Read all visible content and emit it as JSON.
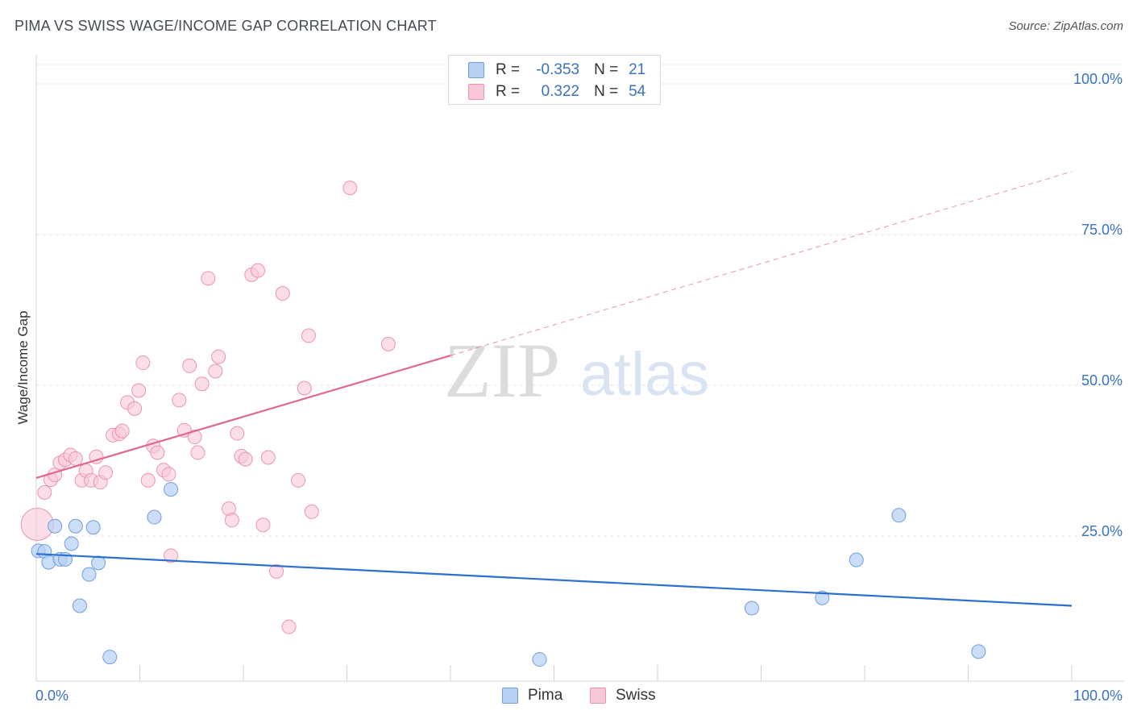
{
  "header": {
    "title": "PIMA VS SWISS WAGE/INCOME GAP CORRELATION CHART",
    "source": "Source: ZipAtlas.com"
  },
  "legend": {
    "rows": [
      {
        "r_label": "R =",
        "r_value": "-0.353",
        "n_label": "N =",
        "n_value": "21"
      },
      {
        "r_label": "R =",
        "r_value": "0.322",
        "n_label": "N =",
        "n_value": "54"
      }
    ]
  },
  "bottom_legend": {
    "pima": "Pima",
    "swiss": "Swiss"
  },
  "watermark": {
    "zip": "ZIP",
    "atlas": "atlas"
  },
  "chart_data": {
    "type": "scatter",
    "title": "PIMA VS SWISS WAGE/INCOME GAP CORRELATION CHART",
    "xlabel": "",
    "ylabel": "Wage/Income Gap",
    "xlim": [
      0,
      100
    ],
    "ylim": [
      0,
      100
    ],
    "x_tick_labels": [
      "0.0%",
      "100.0%"
    ],
    "y_ticks": [
      25,
      50,
      75,
      100
    ],
    "y_tick_labels": [
      "25.0%",
      "50.0%",
      "75.0%",
      "100.0%"
    ],
    "grid": true,
    "legend_position": "top-center",
    "colors": {
      "pima_fill": "#b7d0f3",
      "pima_stroke": "#6f9ee0",
      "pima_line": "#2b6fd0",
      "swiss_fill": "#f8c8d8",
      "swiss_stroke": "#ec93b0",
      "swiss_line": "#e06890",
      "tick_label": "#3a72c0"
    },
    "series": [
      {
        "name": "Pima",
        "r": -0.353,
        "n": 21,
        "trend": {
          "x0": 0,
          "y0": 21.1,
          "x1": 100,
          "y1": 12.5
        },
        "points": [
          [
            0.2,
            21.6
          ],
          [
            0.8,
            21.5
          ],
          [
            1.2,
            19.7
          ],
          [
            1.8,
            25.7
          ],
          [
            2.3,
            20.2
          ],
          [
            2.8,
            20.2
          ],
          [
            3.4,
            22.8
          ],
          [
            3.8,
            25.7
          ],
          [
            4.2,
            12.5
          ],
          [
            5.1,
            17.7
          ],
          [
            5.5,
            25.5
          ],
          [
            6.0,
            19.6
          ],
          [
            7.1,
            4.0
          ],
          [
            11.4,
            27.2
          ],
          [
            13.0,
            31.8
          ],
          [
            48.6,
            3.6
          ],
          [
            69.1,
            12.1
          ],
          [
            75.9,
            13.8
          ],
          [
            79.2,
            20.1
          ],
          [
            83.3,
            27.5
          ],
          [
            91.0,
            4.9
          ]
        ]
      },
      {
        "name": "Swiss",
        "r": 0.322,
        "n": 54,
        "trend": {
          "x0": 0,
          "y0": 33.7,
          "x1": 40,
          "y1": 54.0,
          "dash_to_x": 100,
          "dash_to_y": 84.5
        },
        "points": [
          [
            0.1,
            26.0
          ],
          [
            0.8,
            31.3
          ],
          [
            1.4,
            33.4
          ],
          [
            1.8,
            34.2
          ],
          [
            2.3,
            36.2
          ],
          [
            2.8,
            36.7
          ],
          [
            3.3,
            37.5
          ],
          [
            3.8,
            36.9
          ],
          [
            4.4,
            33.3
          ],
          [
            4.8,
            34.9
          ],
          [
            5.3,
            33.3
          ],
          [
            5.8,
            37.2
          ],
          [
            6.2,
            33.0
          ],
          [
            6.7,
            34.6
          ],
          [
            7.4,
            40.8
          ],
          [
            8.0,
            41.0
          ],
          [
            8.3,
            41.5
          ],
          [
            8.8,
            46.2
          ],
          [
            9.5,
            45.2
          ],
          [
            9.9,
            48.2
          ],
          [
            10.3,
            52.8
          ],
          [
            10.8,
            33.3
          ],
          [
            11.3,
            39.0
          ],
          [
            11.7,
            37.9
          ],
          [
            12.3,
            35.0
          ],
          [
            12.8,
            34.3
          ],
          [
            13.0,
            20.8
          ],
          [
            13.8,
            46.6
          ],
          [
            14.3,
            41.6
          ],
          [
            14.8,
            52.3
          ],
          [
            15.3,
            40.5
          ],
          [
            15.6,
            37.9
          ],
          [
            16.0,
            49.3
          ],
          [
            16.6,
            66.8
          ],
          [
            17.3,
            51.4
          ],
          [
            17.6,
            53.8
          ],
          [
            18.6,
            28.6
          ],
          [
            18.9,
            26.7
          ],
          [
            19.4,
            41.1
          ],
          [
            19.8,
            37.3
          ],
          [
            20.2,
            36.8
          ],
          [
            20.8,
            67.4
          ],
          [
            21.4,
            68.1
          ],
          [
            21.9,
            25.9
          ],
          [
            22.4,
            37.1
          ],
          [
            23.2,
            18.2
          ],
          [
            23.8,
            64.3
          ],
          [
            24.4,
            9.0
          ],
          [
            25.3,
            33.3
          ],
          [
            25.9,
            48.6
          ],
          [
            26.3,
            57.3
          ],
          [
            26.6,
            28.1
          ],
          [
            30.3,
            81.8
          ],
          [
            34.0,
            55.9
          ]
        ]
      }
    ]
  }
}
